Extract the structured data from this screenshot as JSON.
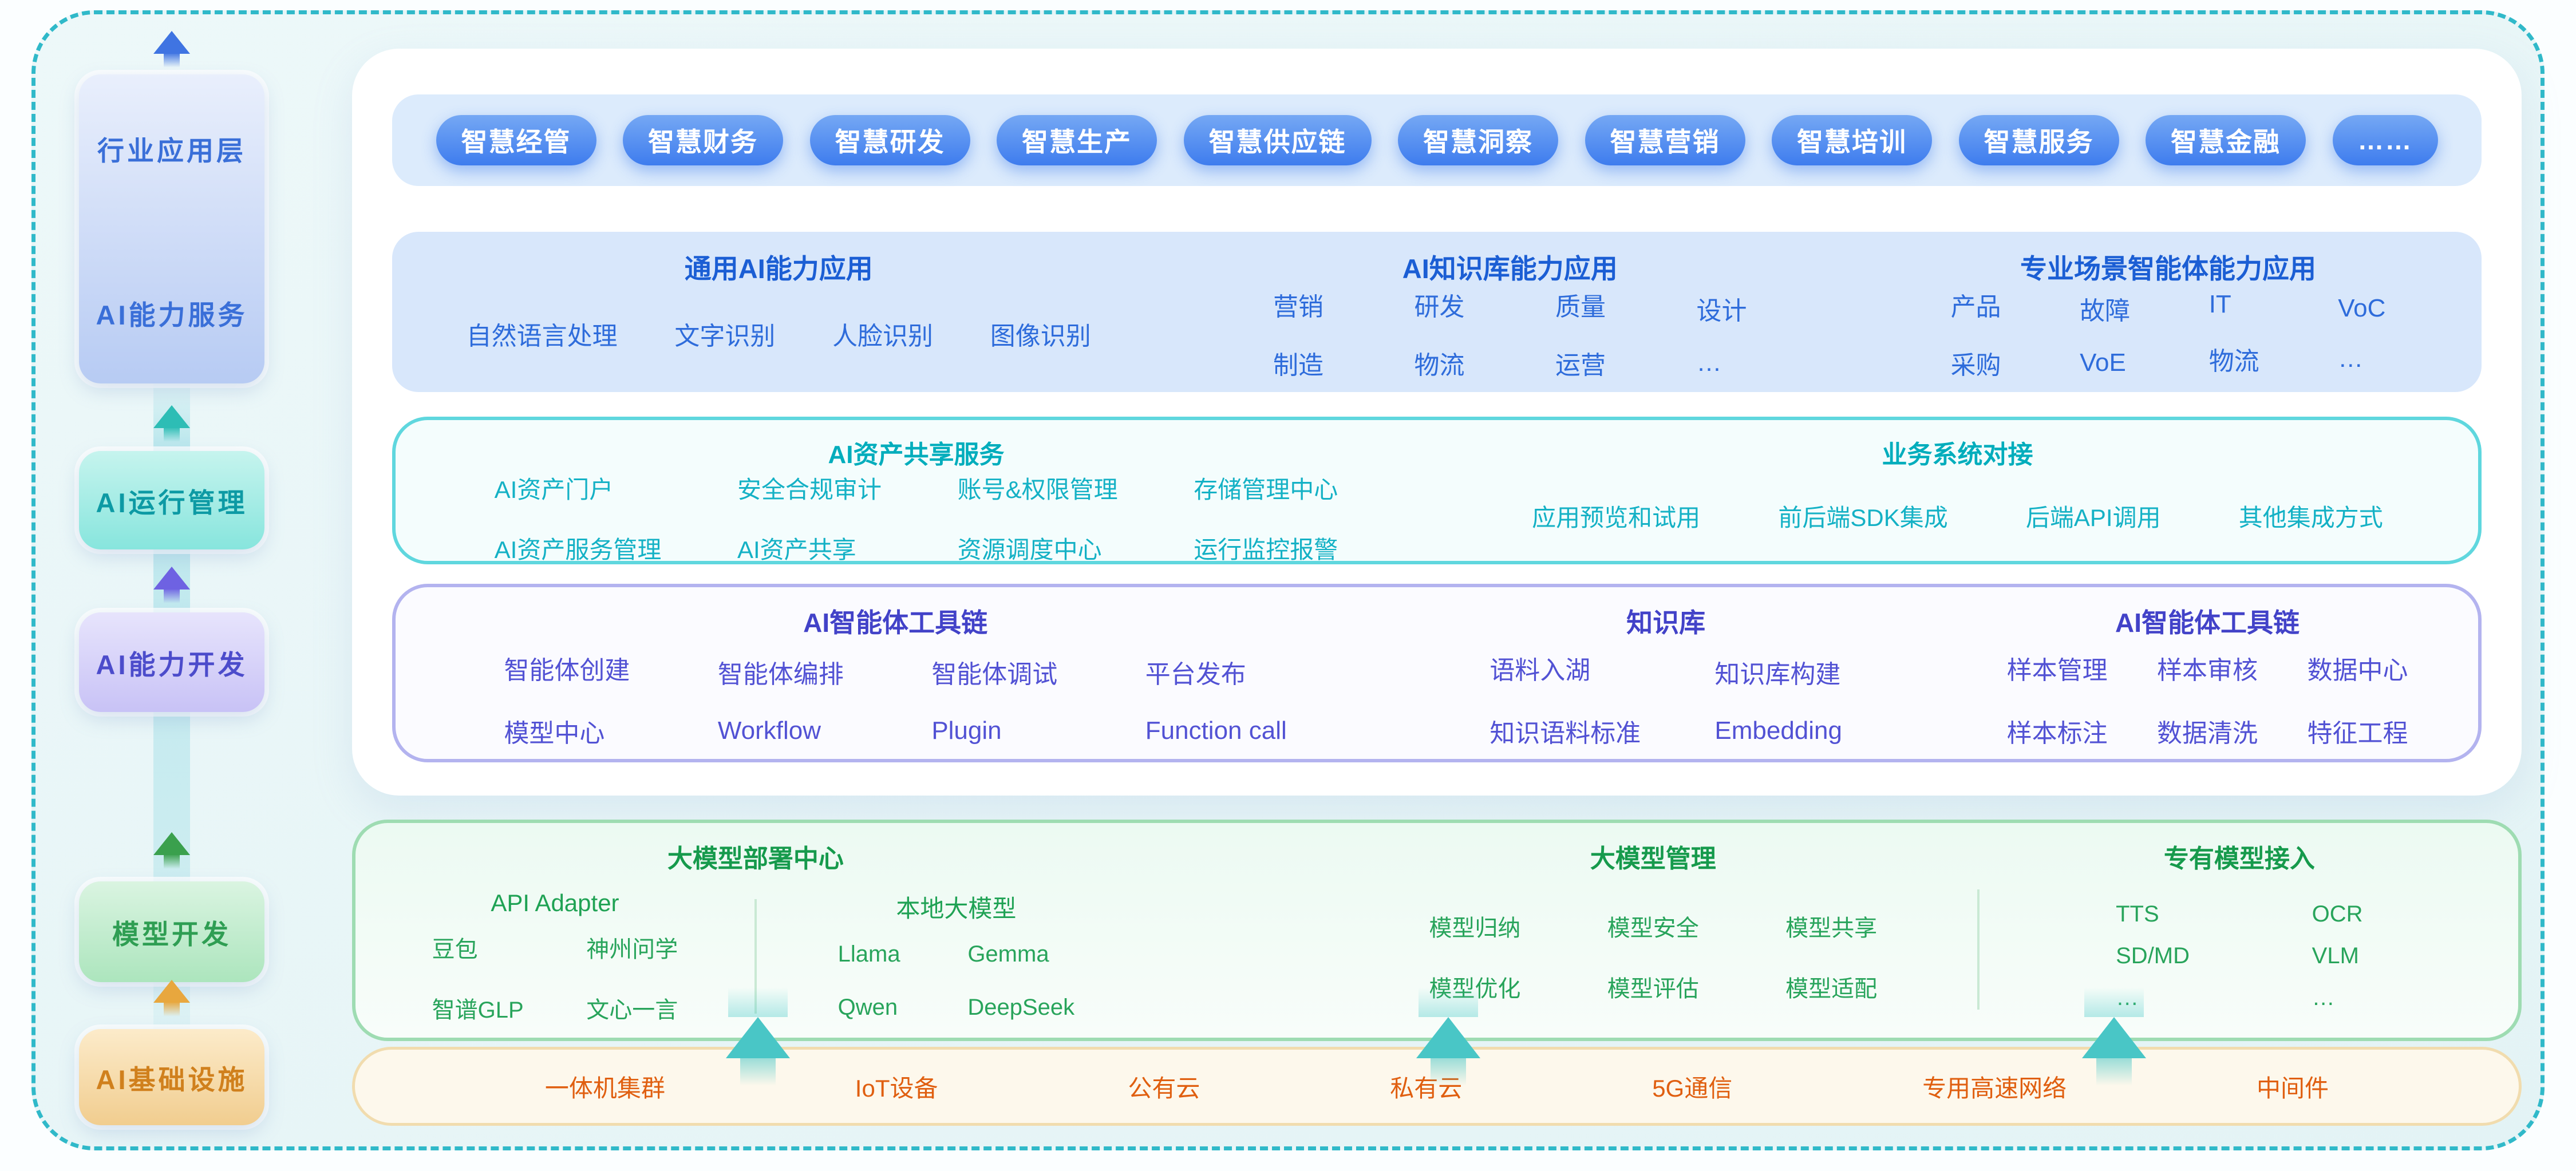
{
  "palette": {
    "frame_dash": "#30b9c9",
    "pill_blue": "#3e7cee",
    "cap_blue": "#1b5ed4",
    "teal": "#00adbc",
    "purple": "#4242c8",
    "green": "#169a4c",
    "orange": "#e05f10"
  },
  "sidebar": {
    "top_box": {
      "label_top": "行业应用层",
      "label_bottom": "AI能力服务"
    },
    "boxes": [
      {
        "label": "AI运行管理"
      },
      {
        "label": "AI能力开发"
      },
      {
        "label": "模型开发"
      },
      {
        "label": "AI基础设施"
      }
    ]
  },
  "pills": {
    "items": [
      "智慧经管",
      "智慧财务",
      "智慧研发",
      "智慧生产",
      "智慧供应链",
      "智慧洞察",
      "智慧营销",
      "智慧培训",
      "智慧服务",
      "智慧金融",
      "……"
    ]
  },
  "cap": {
    "sections": [
      {
        "title": "通用AI能力应用",
        "cols": [
          [
            "自然语言处理"
          ],
          [
            "文字识别"
          ],
          [
            "人脸识别"
          ],
          [
            "图像识别"
          ]
        ]
      },
      {
        "title": "AI知识库能力应用",
        "cols": [
          [
            "营销",
            "制造"
          ],
          [
            "研发",
            "物流"
          ],
          [
            "质量",
            "运营"
          ],
          [
            "设计",
            "…"
          ]
        ]
      },
      {
        "title": "专业场景智能体能力应用",
        "cols": [
          [
            "产品",
            "采购"
          ],
          [
            "故障",
            "VoE"
          ],
          [
            "IT",
            "物流"
          ],
          [
            "VoC",
            "…"
          ]
        ]
      }
    ]
  },
  "asset": {
    "left": {
      "title": "AI资产共享服务",
      "cols": [
        [
          "AI资产门户",
          "AI资产服务管理"
        ],
        [
          "安全合规审计",
          "AI资产共享"
        ],
        [
          "账号&权限管理",
          "资源调度中心"
        ],
        [
          "存储管理中心",
          "运行监控报警"
        ]
      ]
    },
    "right": {
      "title": "业务系统对接",
      "items": [
        "应用预览和试用",
        "前后端SDK集成",
        "后端API调用",
        "其他集成方式"
      ]
    }
  },
  "agent": {
    "groups": [
      {
        "title": "AI智能体工具链",
        "cols": [
          [
            "智能体创建",
            "模型中心"
          ],
          [
            "智能体编排",
            "Workflow"
          ],
          [
            "智能体调试",
            "Plugin"
          ],
          [
            "平台发布",
            "Function call"
          ]
        ]
      },
      {
        "title": "知识库",
        "cols": [
          [
            "语料入湖",
            "知识语料标准"
          ],
          [
            "知识库构建",
            "Embedding"
          ]
        ]
      },
      {
        "title": "AI智能体工具链",
        "cols": [
          [
            "样本管理",
            "样本标注"
          ],
          [
            "样本审核",
            "数据清洗"
          ],
          [
            "数据中心",
            "特征工程"
          ]
        ]
      }
    ]
  },
  "model": {
    "deploy": {
      "title": "大模型部署中心",
      "api": {
        "subtitle": "API Adapter",
        "cols": [
          [
            "豆包",
            "智谱GLP"
          ],
          [
            "神州问学",
            "文心一言"
          ]
        ]
      },
      "local": {
        "subtitle": "本地大模型",
        "cols": [
          [
            "Llama",
            "Qwen"
          ],
          [
            "Gemma",
            "DeepSeek"
          ]
        ]
      }
    },
    "manage": {
      "title": "大模型管理",
      "cols": [
        [
          "模型归纳",
          "模型优化"
        ],
        [
          "模型安全",
          "模型评估"
        ],
        [
          "模型共享",
          "模型适配"
        ]
      ]
    },
    "private": {
      "title": "专有模型接入",
      "cols": [
        [
          "TTS",
          "SD/MD",
          "…"
        ],
        [
          "OCR",
          "VLM",
          "…"
        ]
      ]
    }
  },
  "infra": {
    "items": [
      "一体机集群",
      "IoT设备",
      "公有云",
      "私有云",
      "5G通信",
      "专用高速网络",
      "中间件"
    ]
  }
}
